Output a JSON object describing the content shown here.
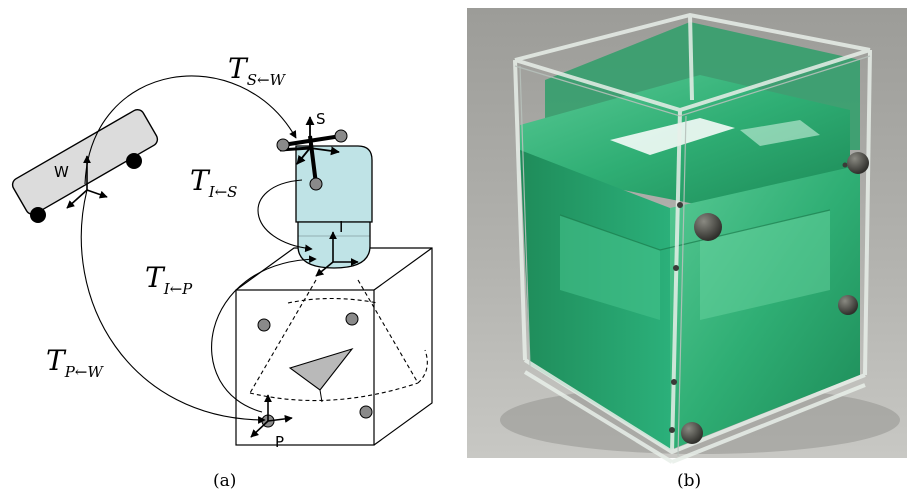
{
  "panel_a": {
    "frames": {
      "W": "W",
      "S": "S",
      "I": "I",
      "P": "P"
    },
    "transforms": [
      {
        "main": "T",
        "sub": "S←W"
      },
      {
        "main": "T",
        "sub": "I←S"
      },
      {
        "main": "T",
        "sub": "I←P"
      },
      {
        "main": "T",
        "sub": "P←W"
      }
    ],
    "caption": "(a)"
  },
  "panel_b": {
    "caption": "(b)"
  },
  "colors": {
    "probe_fill": "#bfe3e6",
    "tracker_fill": "#dcdcdc",
    "marker_fill": "#8a8a8a",
    "target_fill": "#b9b9b9",
    "phantom_green": "#2fae74",
    "photo_background": "#a9a9a6"
  }
}
